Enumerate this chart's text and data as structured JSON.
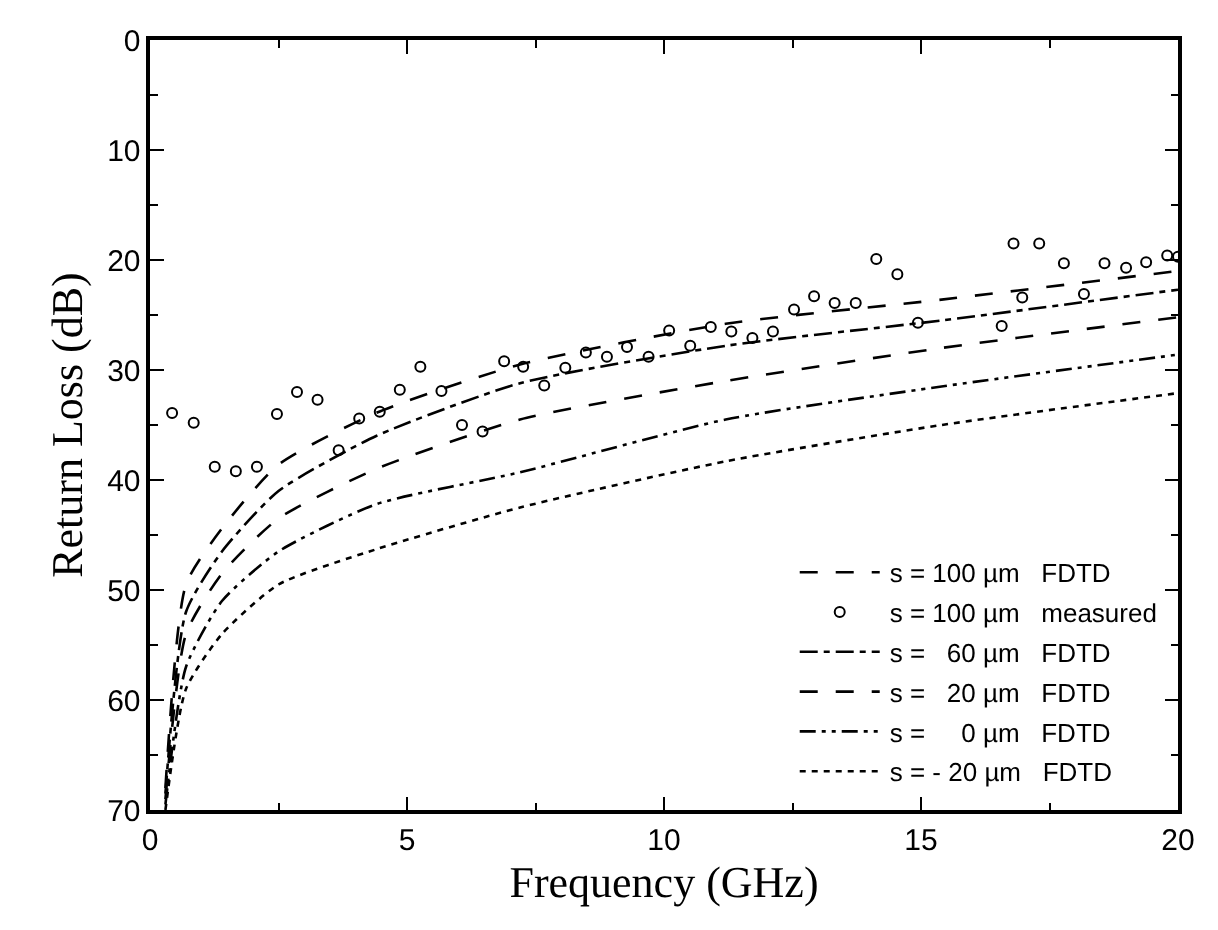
{
  "chart_data": {
    "type": "line",
    "xlabel": "Frequency (GHz)",
    "ylabel": "Return Loss (dB)",
    "xlim": [
      0,
      20
    ],
    "xticks": [
      0,
      5,
      10,
      15,
      20
    ],
    "ylim": [
      70,
      0
    ],
    "yticks": [
      0,
      10,
      20,
      30,
      40,
      50,
      60,
      70
    ],
    "legend": "bottom right",
    "series": [
      {
        "name": "s = 100 µm   FDTD",
        "color": "#000000",
        "line_style": "dashed",
        "marker": "none",
        "x": [
          0.3,
          0.7,
          1.4,
          2.5,
          4.4,
          7.2,
          11.2,
          15.4,
          20
        ],
        "values": [
          68,
          49.5,
          44.4,
          38.6,
          33.9,
          29.5,
          25.8,
          23.6,
          21.0
        ]
      },
      {
        "name": "s = 100 µm   measured",
        "type": "scatter",
        "color": "#000000",
        "marker": "circle",
        "x": [
          0.43,
          0.85,
          1.26,
          1.67,
          2.08,
          2.47,
          2.86,
          3.26,
          3.67,
          4.07,
          4.47,
          4.86,
          5.26,
          5.67,
          6.07,
          6.47,
          6.89,
          7.26,
          7.67,
          8.08,
          8.48,
          8.89,
          9.28,
          9.7,
          10.1,
          10.51,
          10.91,
          11.31,
          11.72,
          12.12,
          12.53,
          12.92,
          13.32,
          13.73,
          14.13,
          14.54,
          14.94,
          16.57,
          16.8,
          16.97,
          17.3,
          17.78,
          18.17,
          18.57,
          18.99,
          19.38,
          19.79,
          20.0
        ],
        "values": [
          33.9,
          34.8,
          38.8,
          39.2,
          38.8,
          34.0,
          32.0,
          32.7,
          37.3,
          34.4,
          33.8,
          31.8,
          29.7,
          31.9,
          35.0,
          35.6,
          29.2,
          29.7,
          31.4,
          29.8,
          28.4,
          28.8,
          27.9,
          28.8,
          26.4,
          27.8,
          26.1,
          26.5,
          27.1,
          26.5,
          24.5,
          23.3,
          23.9,
          23.9,
          19.9,
          21.3,
          25.7,
          26.0,
          18.5,
          23.4,
          18.5,
          20.3,
          23.1,
          20.3,
          20.7,
          20.2,
          19.6,
          19.7
        ]
      },
      {
        "name": "s =   60 µm   FDTD",
        "color": "#000000",
        "line_style": "dashdot",
        "marker": "none",
        "x": [
          0.3,
          0.7,
          1.4,
          2.5,
          4.4,
          7.2,
          11.2,
          15.4,
          20
        ],
        "values": [
          68.5,
          52,
          46.5,
          41,
          36,
          31.2,
          27.8,
          25.5,
          22.7
        ]
      },
      {
        "name": "s =   20 µm   FDTD",
        "color": "#000000",
        "line_style": "dashed",
        "marker": "none",
        "x": [
          0.3,
          0.7,
          1.4,
          2.5,
          4.4,
          7.2,
          11.2,
          15.4,
          20
        ],
        "values": [
          69,
          54,
          48.5,
          43.5,
          39,
          34.5,
          31,
          28,
          25.2
        ]
      },
      {
        "name": "s =     0 µm   FDTD",
        "color": "#000000",
        "line_style": "dashdotdot",
        "marker": "none",
        "x": [
          0.3,
          0.7,
          1.4,
          2.5,
          4.4,
          7.2,
          11.2,
          15.4,
          20
        ],
        "values": [
          69.5,
          57,
          51,
          46.5,
          42.2,
          39.3,
          34.5,
          31.5,
          28.6
        ]
      },
      {
        "name": "s = - 20 µm   FDTD",
        "color": "#000000",
        "line_style": "dotted",
        "marker": "none",
        "x": [
          0.3,
          0.7,
          1.4,
          2.5,
          4.4,
          7.2,
          11.2,
          15.4,
          20
        ],
        "values": [
          70,
          59,
          54,
          49.5,
          46.3,
          42.5,
          38.3,
          35,
          32.1
        ]
      }
    ]
  }
}
